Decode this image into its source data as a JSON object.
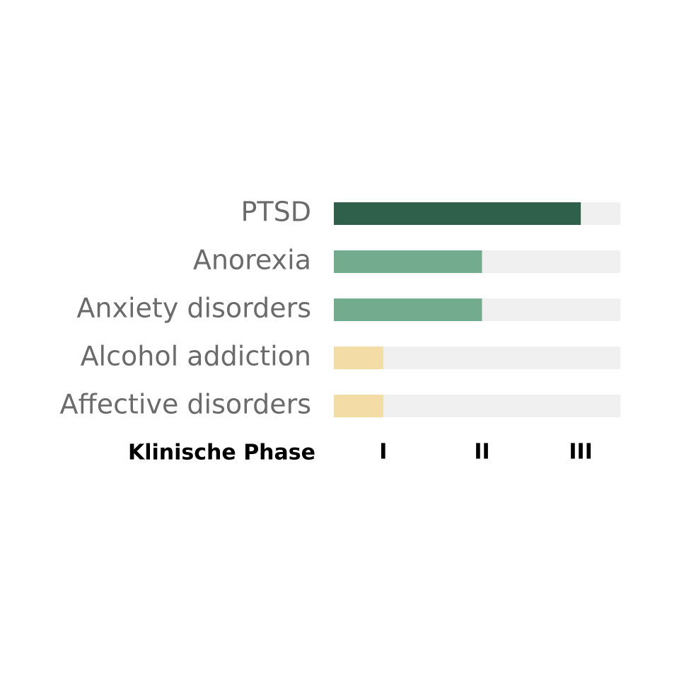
{
  "chart_data": {
    "type": "bar",
    "orientation": "horizontal",
    "categories": [
      "PTSD",
      "Anorexia",
      "Anxiety disorders",
      "Alcohol addiction",
      "Affective disorders"
    ],
    "values": [
      3,
      2,
      2,
      1,
      1
    ],
    "colors": [
      "#2f604b",
      "#72ab8e",
      "#72ab8e",
      "#f3dca6",
      "#f3dca6"
    ],
    "track_color": "#f0f0f0",
    "xlabel": "Klinische Phase",
    "xlim": [
      0.5,
      3.4
    ],
    "xticks": [
      {
        "value": 1,
        "label": "I"
      },
      {
        "value": 2,
        "label": "II"
      },
      {
        "value": 3,
        "label": "III"
      }
    ],
    "grid": false
  }
}
